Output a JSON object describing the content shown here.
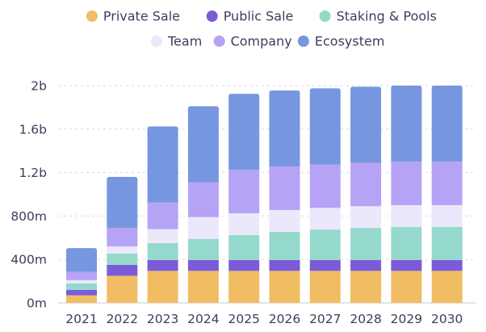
{
  "chart_data": {
    "type": "bar",
    "stacked": true,
    "title": "",
    "xlabel": "",
    "ylabel": "",
    "categories": [
      "2021",
      "2022",
      "2023",
      "2024",
      "2025",
      "2026",
      "2027",
      "2028",
      "2029",
      "2030"
    ],
    "ylim": [
      0,
      2000000000
    ],
    "y_ticks": [
      {
        "value": 0,
        "label": "0m"
      },
      {
        "value": 400000000,
        "label": "400m"
      },
      {
        "value": 800000000,
        "label": "800m"
      },
      {
        "value": 1200000000,
        "label": "1.2b"
      },
      {
        "value": 1600000000,
        "label": "1.6b"
      },
      {
        "value": 2000000000,
        "label": "2b"
      }
    ],
    "grid": true,
    "legend_position": "top-center",
    "series": [
      {
        "name": "Private Sale",
        "color": "#f0bd63",
        "values": [
          70000000,
          250000000,
          295000000,
          295000000,
          295000000,
          295000000,
          295000000,
          295000000,
          295000000,
          295000000
        ]
      },
      {
        "name": "Public Sale",
        "color": "#7b5bd8",
        "values": [
          50000000,
          100000000,
          100000000,
          100000000,
          100000000,
          100000000,
          100000000,
          100000000,
          100000000,
          100000000
        ]
      },
      {
        "name": "Staking & Pools",
        "color": "#95d9cc",
        "values": [
          60000000,
          105000000,
          155000000,
          195000000,
          230000000,
          260000000,
          280000000,
          295000000,
          305000000,
          305000000
        ]
      },
      {
        "name": "Team",
        "color": "#ebe8fb",
        "values": [
          30000000,
          65000000,
          130000000,
          200000000,
          200000000,
          200000000,
          200000000,
          200000000,
          200000000,
          200000000
        ]
      },
      {
        "name": "Company",
        "color": "#b6a3f5",
        "values": [
          75000000,
          170000000,
          245000000,
          320000000,
          400000000,
          400000000,
          400000000,
          400000000,
          400000000,
          400000000
        ]
      },
      {
        "name": "Ecosystem",
        "color": "#7796e0",
        "values": [
          220000000,
          470000000,
          700000000,
          700000000,
          700000000,
          700000000,
          700000000,
          700000000,
          700000000,
          700000000
        ]
      }
    ]
  }
}
